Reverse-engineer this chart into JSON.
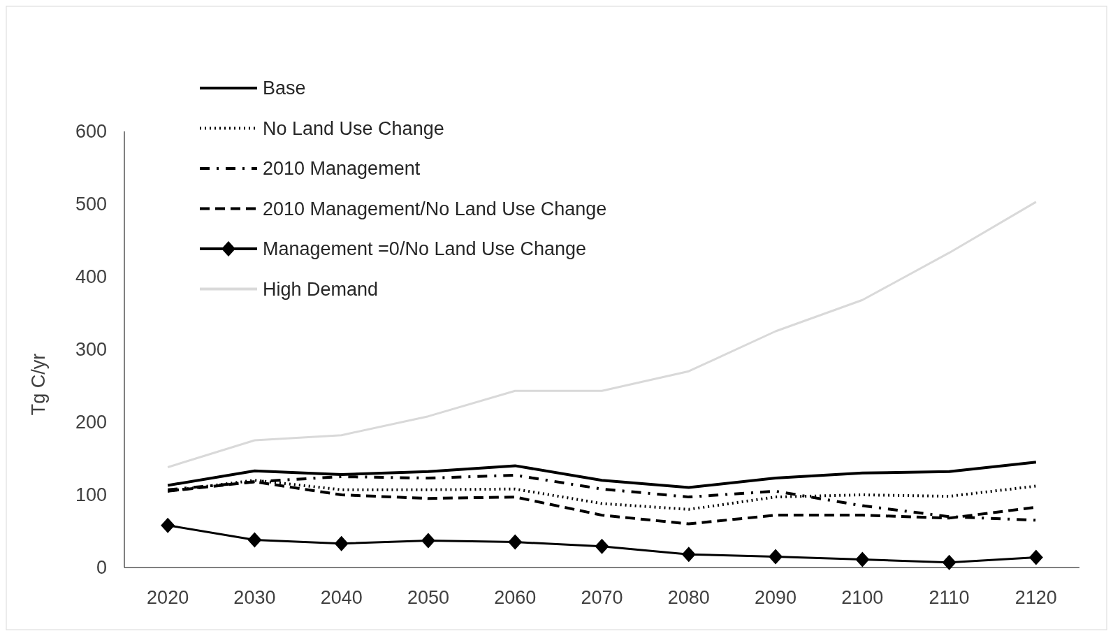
{
  "chart_data": {
    "type": "line",
    "ylabel": "Tg C/yr",
    "x": [
      2020,
      2030,
      2040,
      2050,
      2060,
      2070,
      2080,
      2090,
      2100,
      2110,
      2120
    ],
    "xlim": [
      2015,
      2125
    ],
    "xticks": [
      2020,
      2030,
      2040,
      2050,
      2060,
      2070,
      2080,
      2090,
      2100,
      2110,
      2120
    ],
    "ylim": [
      0,
      600
    ],
    "yticks": [
      0,
      100,
      200,
      300,
      400,
      500,
      600
    ],
    "grid": false,
    "legend": "top left",
    "series": [
      {
        "name": "Base",
        "color": "#000000",
        "line_style": "solid",
        "marker": "none",
        "values": [
          113,
          133,
          128,
          132,
          140,
          120,
          110,
          123,
          130,
          132,
          145
        ]
      },
      {
        "name": "No Land Use Change",
        "color": "#000000",
        "line_style": "dotted",
        "marker": "none",
        "values": [
          105,
          120,
          107,
          107,
          108,
          88,
          80,
          97,
          100,
          98,
          112
        ]
      },
      {
        "name": "2010 Management",
        "color": "#000000",
        "line_style": "dashdot",
        "marker": "none",
        "values": [
          107,
          118,
          125,
          123,
          127,
          108,
          97,
          105,
          85,
          70,
          65
        ]
      },
      {
        "name": "2010 Management/No Land Use Change",
        "color": "#000000",
        "line_style": "dashed",
        "marker": "none",
        "values": [
          105,
          118,
          100,
          95,
          97,
          72,
          60,
          72,
          72,
          68,
          83
        ]
      },
      {
        "name": "Management =0/No Land Use Change",
        "color": "#000000",
        "line_style": "solid",
        "marker": "diamond",
        "values": [
          58,
          38,
          33,
          37,
          35,
          29,
          18,
          15,
          11,
          7,
          14
        ]
      },
      {
        "name": "High Demand",
        "color": "#d9d9d9",
        "line_style": "solid",
        "marker": "none",
        "values": [
          138,
          175,
          182,
          208,
          243,
          243,
          270,
          325,
          368,
          433,
          503
        ]
      }
    ]
  }
}
